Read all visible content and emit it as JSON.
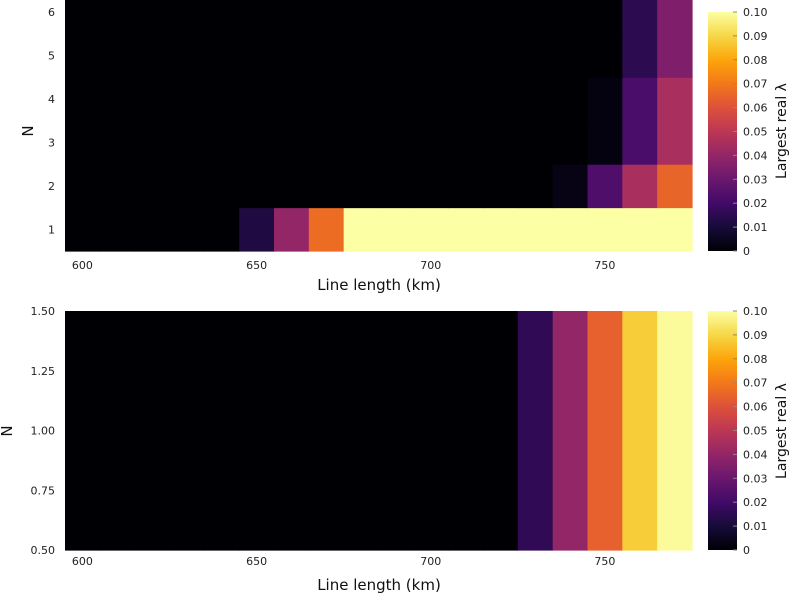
{
  "chart_data": [
    {
      "type": "heatmap",
      "xlabel": "Line length (km)",
      "ylabel": "N",
      "colorbar_label": "Largest real λ",
      "colormap": "inferno",
      "clim": [
        0,
        0.1
      ],
      "xlim": [
        595,
        775
      ],
      "ylim": [
        0.5,
        6
      ],
      "x_centers": [
        600,
        610,
        620,
        630,
        640,
        650,
        660,
        670,
        680,
        690,
        700,
        710,
        720,
        730,
        740,
        750,
        760,
        770
      ],
      "y_centers": [
        1,
        2,
        3,
        4,
        5,
        6
      ],
      "z": [
        [
          0,
          0,
          0,
          0,
          0,
          0.012,
          0.04,
          0.067,
          0.1,
          0.1,
          0.1,
          0.1,
          0.1,
          0.1,
          0.1,
          0.1,
          0.1,
          0.1
        ],
        [
          0,
          0,
          0,
          0,
          0,
          0,
          0,
          0,
          0,
          0,
          0,
          0,
          0,
          0,
          0.003,
          0.023,
          0.045,
          0.065
        ],
        [
          0,
          0,
          0,
          0,
          0,
          0,
          0,
          0,
          0,
          0,
          0,
          0,
          0,
          0,
          0,
          0.002,
          0.022,
          0.045
        ],
        [
          0,
          0,
          0,
          0,
          0,
          0,
          0,
          0,
          0,
          0,
          0,
          0,
          0,
          0,
          0,
          0.002,
          0.022,
          0.045
        ],
        [
          0,
          0,
          0,
          0,
          0,
          0,
          0,
          0,
          0,
          0,
          0,
          0,
          0,
          0,
          0,
          0,
          0.015,
          0.035
        ],
        [
          0,
          0,
          0,
          0,
          0,
          0,
          0,
          0,
          0,
          0,
          0,
          0,
          0,
          0,
          0,
          0,
          0.015,
          0.035
        ]
      ],
      "x_ticks": [
        {
          "value": 600,
          "label": "600"
        },
        {
          "value": 650,
          "label": "650"
        },
        {
          "value": 700,
          "label": "700"
        },
        {
          "value": 750,
          "label": "750"
        }
      ],
      "y_ticks": [
        {
          "value": 1,
          "label": "1"
        },
        {
          "value": 2,
          "label": "2"
        },
        {
          "value": 3,
          "label": "3"
        },
        {
          "value": 4,
          "label": "4"
        },
        {
          "value": 5,
          "label": "5"
        },
        {
          "value": 6,
          "label": "6"
        }
      ],
      "cb_ticks": [
        {
          "value": 0,
          "label": "0"
        },
        {
          "value": 0.01,
          "label": "0.01"
        },
        {
          "value": 0.02,
          "label": "0.02"
        },
        {
          "value": 0.03,
          "label": "0.03"
        },
        {
          "value": 0.04,
          "label": "0.04"
        },
        {
          "value": 0.05,
          "label": "0.05"
        },
        {
          "value": 0.06,
          "label": "0.06"
        },
        {
          "value": 0.07,
          "label": "0.07"
        },
        {
          "value": 0.08,
          "label": "0.08"
        },
        {
          "value": 0.09,
          "label": "0.09"
        },
        {
          "value": 0.1,
          "label": "0.10"
        }
      ]
    },
    {
      "type": "heatmap",
      "xlabel": "Line length (km)",
      "ylabel": "N",
      "colorbar_label": "Largest real λ",
      "colormap": "inferno",
      "clim": [
        0,
        0.1
      ],
      "xlim": [
        595,
        775
      ],
      "ylim": [
        0.5,
        1.5
      ],
      "x_centers": [
        600,
        610,
        620,
        630,
        640,
        650,
        660,
        670,
        680,
        690,
        700,
        710,
        720,
        730,
        740,
        750,
        760,
        770
      ],
      "y_centers": [
        1
      ],
      "z": [
        [
          0,
          0,
          0,
          0,
          0,
          0,
          0,
          0,
          0,
          0,
          0,
          0,
          0,
          0.016,
          0.04,
          0.064,
          0.088,
          0.099
        ]
      ],
      "x_ticks": [
        {
          "value": 600,
          "label": "600"
        },
        {
          "value": 650,
          "label": "650"
        },
        {
          "value": 700,
          "label": "700"
        },
        {
          "value": 750,
          "label": "750"
        }
      ],
      "y_ticks": [
        {
          "value": 0.5,
          "label": "0.50"
        },
        {
          "value": 0.75,
          "label": "0.75"
        },
        {
          "value": 1.0,
          "label": "1.00"
        },
        {
          "value": 1.25,
          "label": "1.25"
        },
        {
          "value": 1.5,
          "label": "1.50"
        }
      ],
      "cb_ticks": [
        {
          "value": 0,
          "label": "0"
        },
        {
          "value": 0.01,
          "label": "0.01"
        },
        {
          "value": 0.02,
          "label": "0.02"
        },
        {
          "value": 0.03,
          "label": "0.03"
        },
        {
          "value": 0.04,
          "label": "0.04"
        },
        {
          "value": 0.05,
          "label": "0.05"
        },
        {
          "value": 0.06,
          "label": "0.06"
        },
        {
          "value": 0.07,
          "label": "0.07"
        },
        {
          "value": 0.08,
          "label": "0.08"
        },
        {
          "value": 0.09,
          "label": "0.09"
        },
        {
          "value": 0.1,
          "label": "0.10"
        }
      ]
    }
  ]
}
